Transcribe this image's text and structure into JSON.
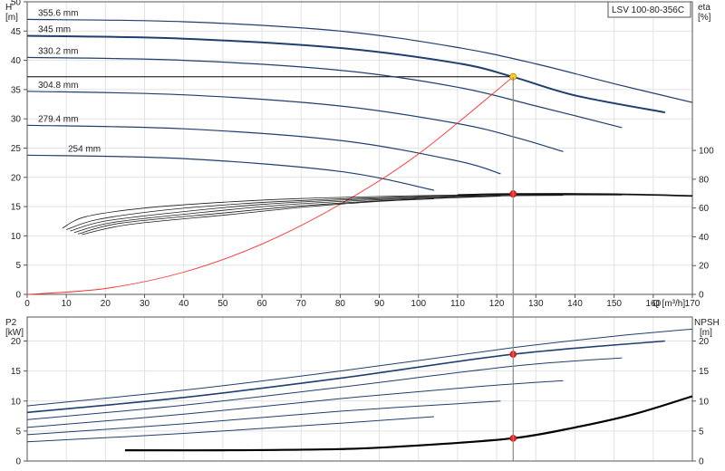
{
  "product_label": "LSV 100-80-356C",
  "chart_data": [
    {
      "type": "line",
      "panel": "head-efficiency",
      "xlabel": "Q [m³/h]",
      "ylabel_left_name": "H",
      "ylabel_left_unit": "[m]",
      "ylabel_right_name": "eta",
      "ylabel_right_unit": "[%]",
      "xlim": [
        0,
        170
      ],
      "ylim_left": [
        0,
        50
      ],
      "ylim_right": [
        0,
        100
      ],
      "x_ticks": [
        0,
        10,
        20,
        30,
        40,
        50,
        60,
        70,
        80,
        90,
        100,
        110,
        120,
        130,
        140,
        150,
        160,
        170
      ],
      "y_ticks_left": [
        0,
        5,
        10,
        15,
        20,
        25,
        30,
        35,
        40,
        45,
        50
      ],
      "y_ticks_right": [
        0,
        20,
        40,
        60,
        80,
        100
      ],
      "grid": true,
      "series": [
        {
          "name": "355.6 mm",
          "role": "head",
          "color": "#1f3f6e",
          "x": [
            0,
            40,
            80,
            110,
            130,
            150,
            170
          ],
          "y": [
            47.0,
            46.6,
            45.0,
            42.2,
            39.4,
            36.0,
            32.8
          ]
        },
        {
          "name": "345 mm",
          "role": "head",
          "color": "#1f3f6e",
          "x": [
            0,
            40,
            80,
            110,
            124,
            140,
            163
          ],
          "y": [
            44.2,
            43.7,
            42.1,
            39.5,
            37.2,
            34.0,
            31.1
          ]
        },
        {
          "name": "330.2 mm",
          "role": "head",
          "color": "#1f3f6e",
          "x": [
            0,
            40,
            80,
            110,
            130,
            152
          ],
          "y": [
            40.5,
            40.0,
            38.3,
            35.4,
            32.2,
            28.5
          ]
        },
        {
          "name": "304.8 mm",
          "role": "head",
          "color": "#1f3f6e",
          "x": [
            0,
            40,
            80,
            110,
            125,
            137
          ],
          "y": [
            34.7,
            34.1,
            32.2,
            29.2,
            26.8,
            24.4
          ]
        },
        {
          "name": "279.4 mm",
          "role": "head",
          "color": "#1f3f6e",
          "x": [
            0,
            40,
            80,
            110,
            121
          ],
          "y": [
            28.9,
            28.3,
            26.3,
            22.8,
            20.6
          ]
        },
        {
          "name": "254 mm",
          "role": "head",
          "color": "#1f3f6e",
          "x": [
            0,
            40,
            80,
            104
          ],
          "y": [
            23.8,
            23.2,
            21.0,
            17.8
          ]
        },
        {
          "name": "",
          "role": "system",
          "color": "#ff3030",
          "x": [
            0,
            20,
            40,
            60,
            80,
            100,
            124.2
          ],
          "y": [
            0,
            1.0,
            3.8,
            8.6,
            15.4,
            24.0,
            37.2
          ]
        },
        {
          "name": "",
          "role": "efficiency",
          "color": "#1f1f1f",
          "x": [
            9,
            15,
            30,
            50,
            70,
            90,
            110,
            124.2,
            150,
            170
          ],
          "y": [
            46,
            54,
            60,
            64,
            66.6,
            68,
            69,
            69.8,
            69.6,
            68.4
          ]
        },
        {
          "name": "",
          "role": "efficiency",
          "color": "#1f1f1f",
          "x": [
            10,
            18,
            35,
            55,
            75,
            95,
            110,
            124.2,
            145,
            163
          ],
          "y": [
            45,
            52,
            58.5,
            63,
            65.8,
            67.6,
            68.6,
            69.4,
            69.4,
            69.0
          ]
        },
        {
          "name": "",
          "role": "efficiency",
          "color": "#1f1f1f",
          "x": [
            11,
            20,
            40,
            60,
            80,
            100,
            115,
            130,
            152
          ],
          "y": [
            44,
            51,
            57.5,
            62.5,
            65.5,
            67.4,
            68.4,
            69.0,
            69.0
          ]
        },
        {
          "name": "",
          "role": "efficiency",
          "color": "#1f1f1f",
          "x": [
            12,
            22,
            45,
            65,
            85,
            105,
            120,
            137
          ],
          "y": [
            43,
            50,
            57,
            62,
            65.2,
            67.2,
            68.4,
            68.8
          ]
        },
        {
          "name": "",
          "role": "efficiency",
          "color": "#1f1f1f",
          "x": [
            13,
            24,
            50,
            70,
            90,
            108,
            121
          ],
          "y": [
            42,
            49.5,
            56.5,
            61.5,
            65,
            67,
            68.2
          ]
        },
        {
          "name": "",
          "role": "efficiency",
          "color": "#1f1f1f",
          "x": [
            14,
            26,
            52,
            72,
            90,
            104
          ],
          "y": [
            41.5,
            48.5,
            55.5,
            61,
            64.6,
            66.4
          ]
        }
      ],
      "points": [
        {
          "role": "duty-head",
          "x": 124.2,
          "y": 37.2,
          "color": "#ffd21f"
        },
        {
          "role": "duty-efficiency",
          "x": 124.2,
          "y": 69.8,
          "color": "#ff2020",
          "axis": "right"
        }
      ],
      "reference_lines": {
        "duty_head": 37.2,
        "duty_flow": 124.2
      }
    },
    {
      "type": "line",
      "panel": "power-npsh",
      "ylabel_left_name": "P2",
      "ylabel_left_unit": "[kW]",
      "ylabel_right_name": "NPSH",
      "ylabel_right_unit": "[m]",
      "xlim": [
        0,
        170
      ],
      "ylim_left": [
        0,
        24
      ],
      "ylim_right": [
        0,
        24
      ],
      "y_ticks_left": [
        0,
        5,
        10,
        15,
        20
      ],
      "y_ticks_right": [
        0,
        5,
        10,
        15,
        20
      ],
      "grid": true,
      "series": [
        {
          "name": "",
          "role": "power",
          "color": "#1f3f6e",
          "x": [
            0,
            40,
            80,
            124.2,
            150,
            170
          ],
          "y": [
            9.2,
            11.8,
            15.0,
            18.9,
            20.8,
            22.0
          ]
        },
        {
          "name": "",
          "role": "power",
          "color": "#1f3f6e",
          "x": [
            0,
            40,
            80,
            124.2,
            163
          ],
          "y": [
            8.1,
            10.6,
            13.8,
            17.8,
            20.0
          ]
        },
        {
          "name": "",
          "role": "power",
          "color": "#1f3f6e",
          "x": [
            0,
            40,
            80,
            124.2,
            152
          ],
          "y": [
            6.9,
            9.3,
            12.3,
            15.8,
            17.2
          ]
        },
        {
          "name": "",
          "role": "power",
          "color": "#1f3f6e",
          "x": [
            0,
            40,
            80,
            115,
            137
          ],
          "y": [
            5.6,
            7.8,
            10.4,
            12.4,
            13.4
          ]
        },
        {
          "name": "",
          "role": "power",
          "color": "#1f3f6e",
          "x": [
            0,
            40,
            80,
            121
          ],
          "y": [
            4.4,
            6.2,
            8.3,
            10.0
          ]
        },
        {
          "name": "",
          "role": "power",
          "color": "#1f3f6e",
          "x": [
            0,
            40,
            80,
            104
          ],
          "y": [
            3.2,
            4.6,
            6.3,
            7.4
          ]
        },
        {
          "name": "",
          "role": "npsh",
          "color": "#000000",
          "x": [
            25,
            50,
            80,
            100,
            124.2,
            140,
            155,
            170
          ],
          "y": [
            1.8,
            1.8,
            2.0,
            2.6,
            3.8,
            5.6,
            7.8,
            10.8
          ]
        }
      ],
      "points": [
        {
          "role": "duty-power",
          "x": 124.2,
          "y": 17.8,
          "color": "#ff2020"
        },
        {
          "role": "duty-npsh",
          "x": 124.2,
          "y": 3.8,
          "color": "#ff2020",
          "axis": "right"
        }
      ]
    }
  ]
}
